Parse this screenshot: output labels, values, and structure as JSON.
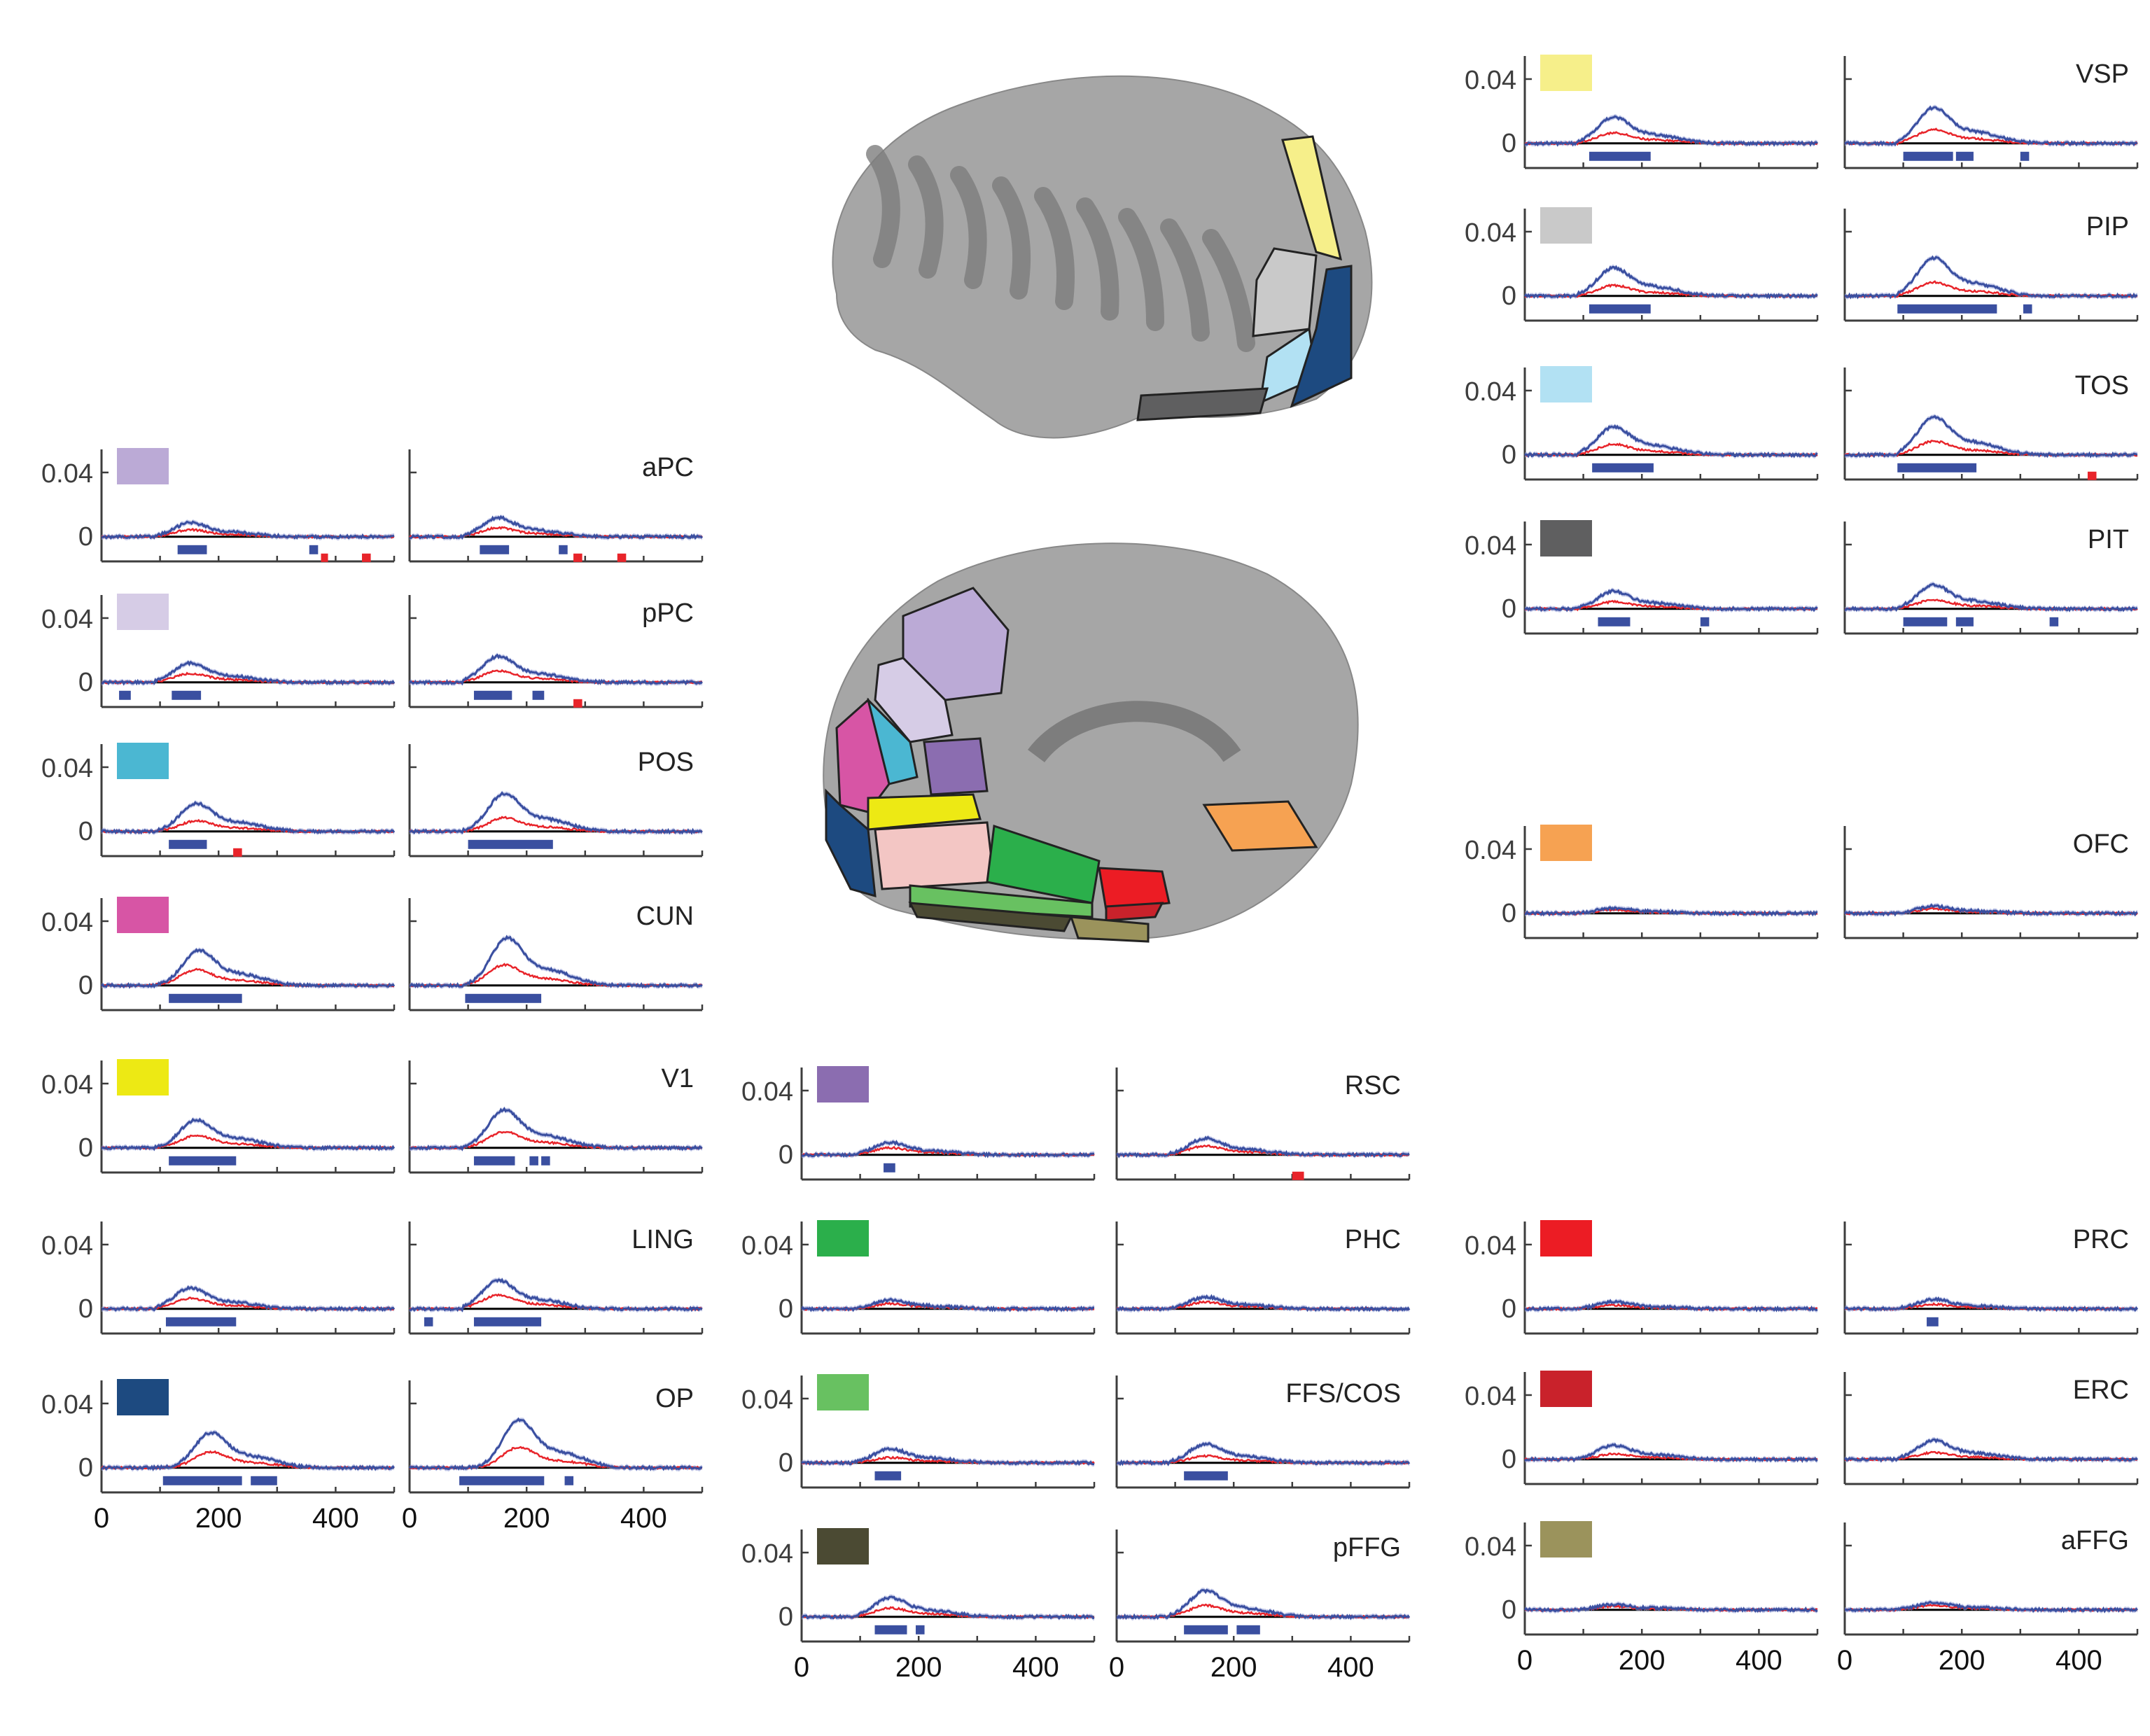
{
  "colors": {
    "blue_line": "#3a4fa0",
    "red_line": "#e8242a",
    "blue_band": "#9aa3d8",
    "red_band": "#f4a7a6",
    "axis": "#3d3d3d",
    "zero_line": "#000000",
    "cortex_light": "#a6a6a6",
    "cortex_dark": "#7d7d7d"
  },
  "y_ticks": [
    "0",
    "0.04"
  ],
  "x_ticks": [
    "0",
    "200",
    "400"
  ],
  "chart_data": [
    {
      "type": "line",
      "region": "aPC",
      "swatch": "#bbaad6",
      "ylim": [
        -0.008,
        0.05
      ],
      "xlim": [
        0,
        500
      ],
      "blue_peak": [
        150,
        0.008
      ],
      "red_peak": [
        150,
        0.004
      ],
      "blue_sig": [
        [
          130,
          180
        ],
        [
          355,
          370
        ]
      ],
      "red_sig": [
        [
          375,
          385
        ],
        [
          445,
          460
        ]
      ],
      "sig2_blue": [
        [
          120,
          170
        ],
        [
          255,
          270
        ]
      ],
      "sig2_red": [
        [
          280,
          295
        ],
        [
          355,
          370
        ]
      ]
    },
    {
      "type": "line",
      "region": "pPC",
      "swatch": "#d6cce6",
      "ylim": [
        -0.008,
        0.05
      ],
      "xlim": [
        0,
        500
      ],
      "blue_peak": [
        150,
        0.011
      ],
      "red_peak": [
        150,
        0.005
      ],
      "blue_sig": [
        [
          30,
          50
        ],
        [
          120,
          170
        ]
      ],
      "red_sig": [],
      "sig2_blue": [
        [
          110,
          175
        ],
        [
          210,
          230
        ]
      ],
      "sig2_red": [
        [
          280,
          295
        ]
      ]
    },
    {
      "type": "line",
      "region": "POS",
      "swatch": "#4bb7d2",
      "ylim": [
        -0.008,
        0.05
      ],
      "xlim": [
        0,
        500
      ],
      "blue_peak": [
        160,
        0.016
      ],
      "red_peak": [
        160,
        0.006
      ],
      "blue_sig": [
        [
          115,
          180
        ]
      ],
      "red_sig": [
        [
          225,
          240
        ]
      ],
      "sig2_blue": [
        [
          100,
          245
        ]
      ],
      "sig2_red": []
    },
    {
      "type": "line",
      "region": "CUN",
      "swatch": "#d755a5",
      "ylim": [
        -0.008,
        0.05
      ],
      "xlim": [
        0,
        500
      ],
      "blue_peak": [
        165,
        0.02
      ],
      "red_peak": [
        160,
        0.009
      ],
      "blue_sig": [
        [
          115,
          240
        ]
      ],
      "red_sig": [],
      "sig2_blue": [
        [
          95,
          225
        ]
      ],
      "sig2_red": []
    },
    {
      "type": "line",
      "region": "V1",
      "swatch": "#ede914",
      "ylim": [
        -0.008,
        0.05
      ],
      "xlim": [
        0,
        500
      ],
      "blue_peak": [
        160,
        0.016
      ],
      "red_peak": [
        160,
        0.007
      ],
      "blue_sig": [
        [
          115,
          230
        ]
      ],
      "red_sig": [],
      "sig2_blue": [
        [
          110,
          180
        ],
        [
          205,
          220
        ],
        [
          225,
          240
        ]
      ],
      "sig2_red": []
    },
    {
      "type": "line",
      "region": "LING",
      "swatch": "#ffffff",
      "ylim": [
        -0.008,
        0.05
      ],
      "xlim": [
        0,
        500
      ],
      "blue_peak": [
        150,
        0.012
      ],
      "red_peak": [
        150,
        0.006
      ],
      "blue_sig": [
        [
          110,
          230
        ]
      ],
      "red_sig": [],
      "sig2_blue": [
        [
          25,
          40
        ],
        [
          110,
          225
        ]
      ],
      "sig2_red": []
    },
    {
      "type": "line",
      "region": "OP",
      "swatch": "#1d4a80",
      "ylim": [
        -0.008,
        0.05
      ],
      "xlim": [
        0,
        500
      ],
      "blue_peak": [
        185,
        0.02
      ],
      "red_peak": [
        185,
        0.009
      ],
      "blue_sig": [
        [
          105,
          240
        ],
        [
          255,
          300
        ]
      ],
      "red_sig": [],
      "sig2_blue": [
        [
          85,
          230
        ],
        [
          265,
          280
        ]
      ],
      "sig2_red": []
    },
    {
      "type": "line",
      "region": "VSP",
      "swatch": "#f6ef8a",
      "ylim": [
        -0.008,
        0.05
      ],
      "xlim": [
        0,
        500
      ],
      "blue_peak": [
        150,
        0.015
      ],
      "red_peak": [
        150,
        0.006
      ],
      "blue_sig": [
        [
          110,
          215
        ]
      ],
      "red_sig": [],
      "sig2_blue": [
        [
          100,
          185
        ],
        [
          190,
          220
        ],
        [
          300,
          315
        ]
      ],
      "sig2_red": []
    },
    {
      "type": "line",
      "region": "PIP",
      "swatch": "#c9c9c9",
      "ylim": [
        -0.008,
        0.05
      ],
      "xlim": [
        0,
        500
      ],
      "blue_peak": [
        150,
        0.016
      ],
      "red_peak": [
        150,
        0.006
      ],
      "blue_sig": [
        [
          110,
          215
        ]
      ],
      "red_sig": [],
      "sig2_blue": [
        [
          90,
          260
        ],
        [
          305,
          320
        ]
      ],
      "sig2_red": []
    },
    {
      "type": "line",
      "region": "TOS",
      "swatch": "#b2e1f3",
      "ylim": [
        -0.008,
        0.05
      ],
      "xlim": [
        0,
        500
      ],
      "blue_peak": [
        150,
        0.016
      ],
      "red_peak": [
        150,
        0.006
      ],
      "blue_sig": [
        [
          115,
          220
        ]
      ],
      "red_sig": [],
      "sig2_blue": [
        [
          90,
          225
        ]
      ],
      "sig2_red": [
        [
          415,
          430
        ]
      ]
    },
    {
      "type": "line",
      "region": "PIT",
      "swatch": "#5f5f60",
      "ylim": [
        -0.008,
        0.05
      ],
      "xlim": [
        0,
        500
      ],
      "blue_peak": [
        150,
        0.01
      ],
      "red_peak": [
        150,
        0.004
      ],
      "blue_sig": [
        [
          125,
          180
        ],
        [
          300,
          315
        ]
      ],
      "red_sig": [],
      "sig2_blue": [
        [
          100,
          175
        ],
        [
          190,
          220
        ],
        [
          350,
          365
        ]
      ],
      "sig2_red": []
    },
    {
      "type": "line",
      "region": "OFC",
      "swatch": "#f6a252",
      "ylim": [
        -0.008,
        0.05
      ],
      "xlim": [
        0,
        500
      ],
      "blue_peak": [
        150,
        0.003
      ],
      "red_peak": [
        150,
        0.002
      ],
      "blue_sig": [],
      "red_sig": [],
      "sig2_blue": [],
      "sig2_red": []
    },
    {
      "type": "line",
      "region": "RSC",
      "swatch": "#8b6db0",
      "ylim": [
        -0.008,
        0.05
      ],
      "xlim": [
        0,
        500
      ],
      "blue_peak": [
        150,
        0.007
      ],
      "red_peak": [
        150,
        0.004
      ],
      "blue_sig": [
        [
          140,
          160
        ]
      ],
      "red_sig": [],
      "sig2_blue": [],
      "sig2_red": [
        [
          300,
          320
        ]
      ]
    },
    {
      "type": "line",
      "region": "PHC",
      "swatch": "#2baf4b",
      "ylim": [
        -0.008,
        0.05
      ],
      "xlim": [
        0,
        500
      ],
      "blue_peak": [
        150,
        0.005
      ],
      "red_peak": [
        150,
        0.003
      ],
      "blue_sig": [],
      "red_sig": [],
      "sig2_blue": [],
      "sig2_red": []
    },
    {
      "type": "line",
      "region": "FFS/COS",
      "swatch": "#68c161",
      "ylim": [
        -0.008,
        0.05
      ],
      "xlim": [
        0,
        500
      ],
      "blue_peak": [
        150,
        0.008
      ],
      "red_peak": [
        150,
        0.003
      ],
      "blue_sig": [
        [
          125,
          170
        ]
      ],
      "red_sig": [],
      "sig2_blue": [
        [
          115,
          190
        ]
      ],
      "sig2_red": []
    },
    {
      "type": "line",
      "region": "pFFG",
      "swatch": "#4b4a33",
      "ylim": [
        -0.008,
        0.05
      ],
      "xlim": [
        0,
        500
      ],
      "blue_peak": [
        150,
        0.011
      ],
      "red_peak": [
        150,
        0.005
      ],
      "blue_sig": [
        [
          125,
          180
        ],
        [
          195,
          210
        ]
      ],
      "red_sig": [],
      "sig2_blue": [
        [
          115,
          190
        ],
        [
          205,
          245
        ]
      ],
      "sig2_red": []
    },
    {
      "type": "line",
      "region": "PRC",
      "swatch": "#ec1c24",
      "ylim": [
        -0.008,
        0.05
      ],
      "xlim": [
        0,
        500
      ],
      "blue_peak": [
        150,
        0.004
      ],
      "red_peak": [
        150,
        0.002
      ],
      "blue_sig": [],
      "red_sig": [],
      "sig2_blue": [
        [
          140,
          160
        ]
      ],
      "sig2_red": []
    },
    {
      "type": "line",
      "region": "ERC",
      "swatch": "#c9222b",
      "ylim": [
        -0.008,
        0.05
      ],
      "xlim": [
        0,
        500
      ],
      "blue_peak": [
        150,
        0.008
      ],
      "red_peak": [
        150,
        0.003
      ],
      "blue_sig": [],
      "red_sig": [],
      "sig2_blue": [],
      "sig2_red": []
    },
    {
      "type": "line",
      "region": "aFFG",
      "swatch": "#9b935c",
      "ylim": [
        -0.008,
        0.05
      ],
      "xlim": [
        0,
        500
      ],
      "blue_peak": [
        150,
        0.003
      ],
      "red_peak": [
        150,
        0.002
      ],
      "blue_sig": [],
      "red_sig": [],
      "sig2_blue": [],
      "sig2_red": []
    }
  ]
}
